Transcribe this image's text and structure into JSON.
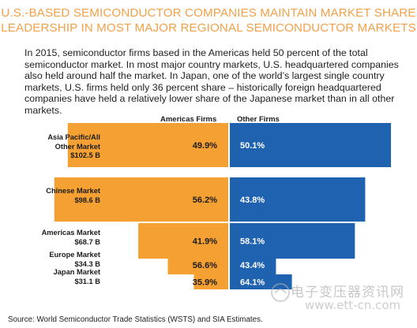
{
  "title_line1": "U.S.-BASED SEMICONDUCTOR COMPANIES MAINTAIN MARKET SHARE",
  "title_line2": "LEADERSHIP IN MOST MAJOR REGIONAL SEMICONDUCTOR MARKETS",
  "intro": "In 2015, semiconductor firms based in the Americas held 50 percent of the total semiconductor market.  In most major country markets, U.S. headquartered companies also held around half the market.  In Japan, one of the world’s largest single country markets, U.S. firms held only 36 percent share – historically foreign headquartered companies have held a relatively lower share of the Japanese market than in all other markets.",
  "source": "Source: World Semiconductor Trade Statistics (WSTS) and SIA Estimates.",
  "watermark": {
    "cn": "电子变压器资讯网",
    "url": "www.ett-cn.com"
  },
  "colors": {
    "americas": "#f5a033",
    "other": "#1f63b0",
    "title": "#f3a14a"
  },
  "chart_data": {
    "type": "bar",
    "orientation": "horizontal-diverging",
    "categories": [
      "Asia Pacific/All Other Market",
      "Chinese Market",
      "Americas Market",
      "Europe Market",
      "Japan Market"
    ],
    "market_size_labels": [
      "$102.5 B",
      "$98.6 B",
      "$68.7 B",
      "$34.3 B",
      "$31.1 B"
    ],
    "market_size_billion": [
      102.5,
      98.6,
      68.7,
      34.3,
      31.1
    ],
    "series": [
      {
        "name": "Americas Firms",
        "values": [
          49.9,
          56.2,
          41.9,
          56.6,
          35.9
        ],
        "labels": [
          "49.9%",
          "56.2%",
          "41.9%",
          "56.6%",
          "35.9%"
        ]
      },
      {
        "name": "Other Firms",
        "values": [
          50.1,
          43.8,
          58.1,
          43.4,
          64.1
        ],
        "labels": [
          "50.1%",
          "43.8%",
          "58.1%",
          "43.4%",
          "64.1%"
        ]
      }
    ]
  }
}
